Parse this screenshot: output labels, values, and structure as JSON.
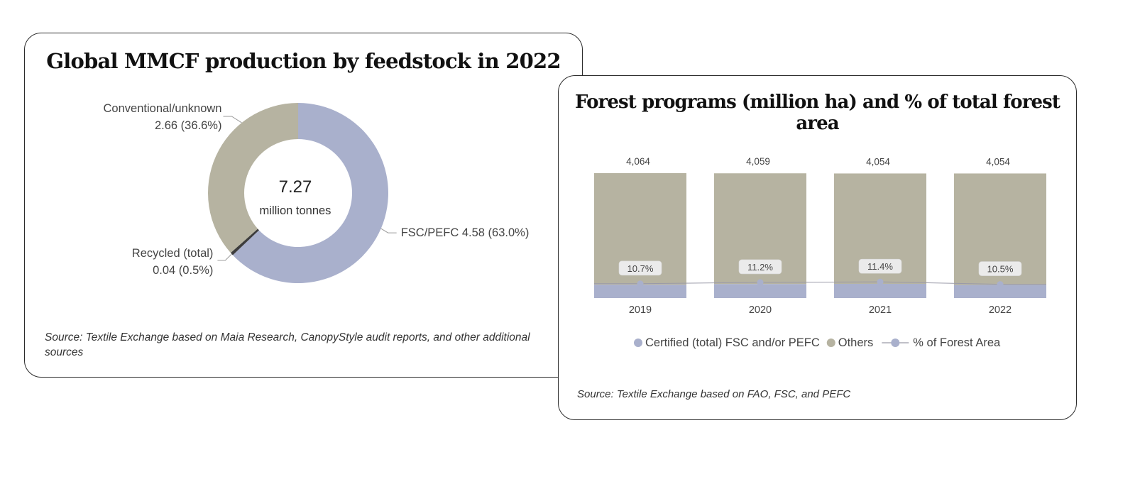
{
  "chart_data": [
    {
      "type": "pie",
      "title": "Global MMCF production by feedstock in 2022",
      "center_value": "7.27",
      "center_unit": "million tonnes",
      "slices": [
        {
          "name": "FSC/PEFC",
          "value": 4.58,
          "percent": 63.0,
          "label": "FSC/PEFC 4.58 (63.0%)",
          "color": "#a9b0cc"
        },
        {
          "name": "Recycled (total)",
          "value": 0.04,
          "percent": 0.5,
          "label_line1": "Recycled (total)",
          "label_line2": "0.04 (0.5%)",
          "color": "#3d3d3d"
        },
        {
          "name": "Conventional/unknown",
          "value": 2.66,
          "percent": 36.6,
          "label_line1": "Conventional/unknown",
          "label_line2": "2.66 (36.6%)",
          "color": "#b6b3a1"
        }
      ],
      "source": "Source: Textile Exchange based on Maia Research, CanopyStyle audit reports, and other additional sources"
    },
    {
      "type": "bar",
      "stacked": true,
      "title": "Forest programs (million ha) and % of total forest area",
      "categories": [
        "2019",
        "2020",
        "2021",
        "2022"
      ],
      "totals": [
        4064,
        4059,
        4054,
        4054
      ],
      "total_labels": [
        "4,064",
        "4,059",
        "4,054",
        "4,054"
      ],
      "series": [
        {
          "name": "Certified (total) FSC and/or PEFC",
          "type": "bar",
          "color": "#a9b0cc",
          "values": [
            434.8,
            454.6,
            462.2,
            425.7
          ]
        },
        {
          "name": "Others",
          "type": "bar",
          "color": "#b6b3a1",
          "values": [
            3629.2,
            3604.4,
            3591.8,
            3628.3
          ]
        },
        {
          "name": "% of Forest Area",
          "type": "line",
          "color": "#a9b0cc",
          "values": [
            10.7,
            11.2,
            11.4,
            10.5
          ],
          "labels": [
            "10.7%",
            "11.2%",
            "11.4%",
            "10.5%"
          ]
        }
      ],
      "legend_position": "bottom",
      "source": "Source: Textile Exchange based on FAO, FSC, and PEFC"
    }
  ]
}
